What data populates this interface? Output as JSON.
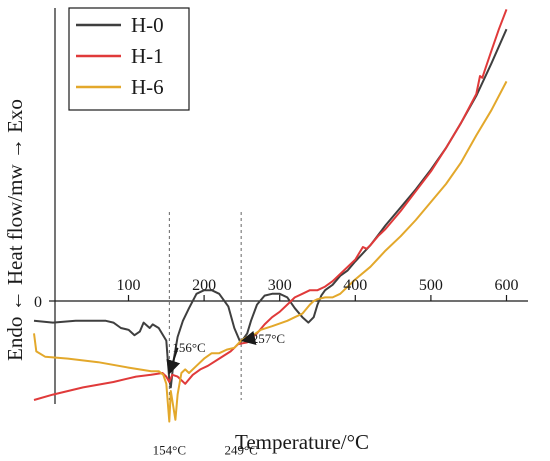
{
  "chart_data": {
    "type": "line",
    "title": "",
    "xlabel": "Temperature/°C",
    "ylabel": "Endo ← Heat flow/mw → Exo",
    "xlim": [
      -30,
      620
    ],
    "ylim": [
      -4.6,
      11.5
    ],
    "x_ticks": [
      100,
      200,
      300,
      400,
      500,
      600
    ],
    "x_tick_labels": [
      "100",
      "200",
      "300",
      "400",
      "500",
      "600"
    ],
    "y_ticks": [
      0
    ],
    "y_tick_labels": [
      "0"
    ],
    "grid": false,
    "legend": "top-left",
    "colors": {
      "axis": "#1a1a1a",
      "dashed_line": "#555555"
    },
    "series": [
      {
        "name": "H-0",
        "color": "#3f3f3f",
        "points": [
          [
            -25,
            -0.55
          ],
          [
            0,
            -0.6
          ],
          [
            30,
            -0.55
          ],
          [
            70,
            -0.55
          ],
          [
            80,
            -0.6
          ],
          [
            90,
            -0.75
          ],
          [
            100,
            -0.8
          ],
          [
            108,
            -0.95
          ],
          [
            115,
            -0.85
          ],
          [
            120,
            -0.6
          ],
          [
            128,
            -0.75
          ],
          [
            132,
            -0.65
          ],
          [
            140,
            -0.75
          ],
          [
            150,
            -1.1
          ],
          [
            154,
            -2.2
          ],
          [
            156,
            -2.4
          ],
          [
            160,
            -1.6
          ],
          [
            165,
            -1.0
          ],
          [
            172,
            -0.55
          ],
          [
            180,
            -0.2
          ],
          [
            190,
            0.2
          ],
          [
            200,
            0.3
          ],
          [
            210,
            0.3
          ],
          [
            220,
            0.2
          ],
          [
            232,
            -0.15
          ],
          [
            240,
            -0.75
          ],
          [
            248,
            -1.15
          ],
          [
            252,
            -1.05
          ],
          [
            257,
            -0.9
          ],
          [
            262,
            -0.55
          ],
          [
            270,
            -0.1
          ],
          [
            280,
            0.15
          ],
          [
            290,
            0.2
          ],
          [
            300,
            0.2
          ],
          [
            310,
            0.1
          ],
          [
            320,
            -0.2
          ],
          [
            330,
            -0.45
          ],
          [
            338,
            -0.6
          ],
          [
            345,
            -0.45
          ],
          [
            350,
            -0.1
          ],
          [
            355,
            0.15
          ],
          [
            360,
            0.3
          ],
          [
            370,
            0.45
          ],
          [
            380,
            0.7
          ],
          [
            390,
            0.85
          ],
          [
            400,
            1.1
          ],
          [
            420,
            1.55
          ],
          [
            440,
            2.1
          ],
          [
            460,
            2.6
          ],
          [
            480,
            3.1
          ],
          [
            500,
            3.65
          ],
          [
            520,
            4.25
          ],
          [
            540,
            4.95
          ],
          [
            560,
            5.7
          ],
          [
            580,
            6.6
          ],
          [
            600,
            7.55
          ]
        ]
      },
      {
        "name": "H-1",
        "color": "#e03a3a",
        "points": [
          [
            -25,
            -2.75
          ],
          [
            0,
            -2.6
          ],
          [
            40,
            -2.4
          ],
          [
            80,
            -2.25
          ],
          [
            110,
            -2.1
          ],
          [
            130,
            -2.05
          ],
          [
            145,
            -2.0
          ],
          [
            150,
            -2.1
          ],
          [
            154,
            -2.25
          ],
          [
            158,
            -2.05
          ],
          [
            165,
            -2.1
          ],
          [
            175,
            -2.3
          ],
          [
            185,
            -2.05
          ],
          [
            195,
            -1.9
          ],
          [
            205,
            -1.8
          ],
          [
            220,
            -1.6
          ],
          [
            235,
            -1.4
          ],
          [
            245,
            -1.2
          ],
          [
            257,
            -1.15
          ],
          [
            270,
            -0.9
          ],
          [
            280,
            -0.65
          ],
          [
            290,
            -0.45
          ],
          [
            300,
            -0.3
          ],
          [
            310,
            -0.1
          ],
          [
            320,
            0.1
          ],
          [
            330,
            0.2
          ],
          [
            340,
            0.3
          ],
          [
            350,
            0.3
          ],
          [
            360,
            0.4
          ],
          [
            370,
            0.55
          ],
          [
            385,
            0.85
          ],
          [
            400,
            1.15
          ],
          [
            410,
            1.5
          ],
          [
            415,
            1.45
          ],
          [
            420,
            1.55
          ],
          [
            430,
            1.8
          ],
          [
            440,
            2.0
          ],
          [
            460,
            2.5
          ],
          [
            480,
            3.05
          ],
          [
            500,
            3.6
          ],
          [
            520,
            4.25
          ],
          [
            540,
            4.95
          ],
          [
            560,
            5.75
          ],
          [
            565,
            6.25
          ],
          [
            568,
            6.2
          ],
          [
            572,
            6.45
          ],
          [
            580,
            6.95
          ],
          [
            590,
            7.55
          ],
          [
            600,
            8.1
          ]
        ]
      },
      {
        "name": "H-6",
        "color": "#e3a82b",
        "points": [
          [
            -25,
            -0.9
          ],
          [
            -22,
            -1.4
          ],
          [
            -10,
            -1.55
          ],
          [
            20,
            -1.6
          ],
          [
            60,
            -1.7
          ],
          [
            100,
            -1.85
          ],
          [
            130,
            -1.95
          ],
          [
            140,
            -1.95
          ],
          [
            146,
            -2.05
          ],
          [
            150,
            -2.3
          ],
          [
            154,
            -3.35
          ],
          [
            156,
            -2.5
          ],
          [
            159,
            -2.9
          ],
          [
            162,
            -3.3
          ],
          [
            165,
            -2.6
          ],
          [
            170,
            -2.0
          ],
          [
            175,
            -1.9
          ],
          [
            180,
            -2.0
          ],
          [
            190,
            -1.8
          ],
          [
            200,
            -1.6
          ],
          [
            210,
            -1.45
          ],
          [
            220,
            -1.45
          ],
          [
            230,
            -1.35
          ],
          [
            240,
            -1.3
          ],
          [
            249,
            -1.1
          ],
          [
            257,
            -1.0
          ],
          [
            265,
            -0.95
          ],
          [
            275,
            -0.8
          ],
          [
            290,
            -0.7
          ],
          [
            310,
            -0.55
          ],
          [
            320,
            -0.45
          ],
          [
            330,
            -0.35
          ],
          [
            340,
            -0.1
          ],
          [
            345,
            0.0
          ],
          [
            350,
            0.05
          ],
          [
            360,
            0.1
          ],
          [
            370,
            0.1
          ],
          [
            380,
            0.2
          ],
          [
            390,
            0.4
          ],
          [
            400,
            0.6
          ],
          [
            420,
            0.95
          ],
          [
            440,
            1.4
          ],
          [
            460,
            1.8
          ],
          [
            480,
            2.25
          ],
          [
            500,
            2.75
          ],
          [
            520,
            3.25
          ],
          [
            540,
            3.85
          ],
          [
            560,
            4.6
          ],
          [
            580,
            5.3
          ],
          [
            600,
            6.1
          ]
        ]
      }
    ],
    "annotations": [
      {
        "text": "156°C",
        "label_x": 158,
        "label_y": -1.3,
        "arrow_from": [
          165,
          -1.3
        ],
        "arrow_to": [
          154,
          -2.0
        ]
      },
      {
        "text": "257°C",
        "label_x": 263,
        "label_y": -1.05,
        "arrow_from": [
          262,
          -1.05
        ],
        "arrow_to": [
          251,
          -1.1
        ]
      },
      {
        "text": "154°C",
        "label_x": 154,
        "label_y": -4.15
      },
      {
        "text": "249°C",
        "label_x": 249,
        "label_y": -4.15
      }
    ],
    "reference_lines": [
      {
        "x": 154,
        "style": "dashed"
      },
      {
        "x": 249,
        "style": "dashed"
      }
    ]
  }
}
